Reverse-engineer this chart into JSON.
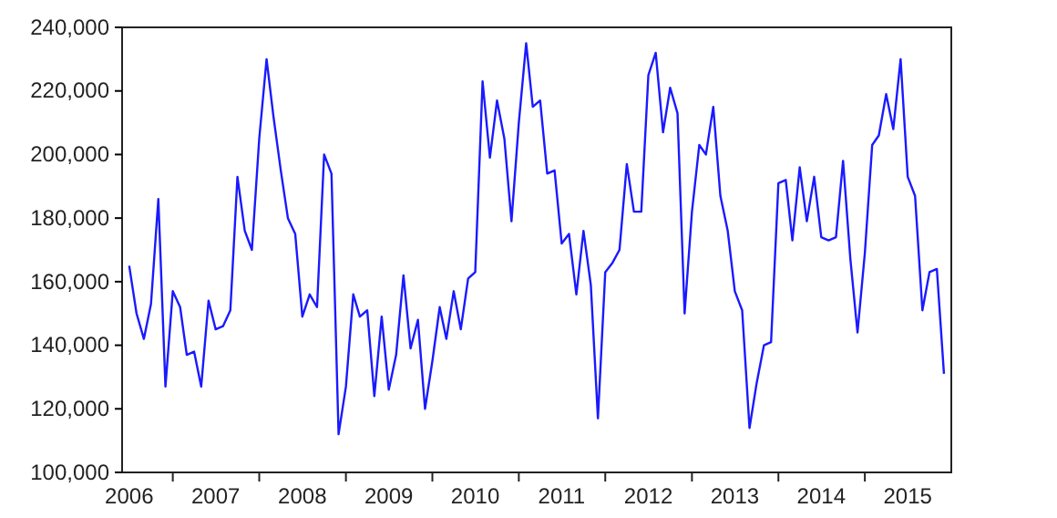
{
  "chart_data": {
    "type": "line",
    "x": [
      "2006-07",
      "2006-08",
      "2006-09",
      "2006-10",
      "2006-11",
      "2006-12",
      "2007-01",
      "2007-02",
      "2007-03",
      "2007-04",
      "2007-05",
      "2007-06",
      "2007-07",
      "2007-08",
      "2007-09",
      "2007-10",
      "2007-11",
      "2007-12",
      "2008-01",
      "2008-02",
      "2008-03",
      "2008-04",
      "2008-05",
      "2008-06",
      "2008-07",
      "2008-08",
      "2008-09",
      "2008-10",
      "2008-11",
      "2008-12",
      "2009-01",
      "2009-02",
      "2009-03",
      "2009-04",
      "2009-05",
      "2009-06",
      "2009-07",
      "2009-08",
      "2009-09",
      "2009-10",
      "2009-11",
      "2009-12",
      "2010-01",
      "2010-02",
      "2010-03",
      "2010-04",
      "2010-05",
      "2010-06",
      "2010-07",
      "2010-08",
      "2010-09",
      "2010-10",
      "2010-11",
      "2010-12",
      "2011-01",
      "2011-02",
      "2011-03",
      "2011-04",
      "2011-05",
      "2011-06",
      "2011-07",
      "2011-08",
      "2011-09",
      "2011-10",
      "2011-11",
      "2011-12",
      "2012-01",
      "2012-02",
      "2012-03",
      "2012-04",
      "2012-05",
      "2012-06",
      "2012-07",
      "2012-08",
      "2012-09",
      "2012-10",
      "2012-11",
      "2012-12",
      "2013-01",
      "2013-02",
      "2013-03",
      "2013-04",
      "2013-05",
      "2013-06",
      "2013-07",
      "2013-08",
      "2013-09",
      "2013-10",
      "2013-11",
      "2013-12",
      "2014-01",
      "2014-02",
      "2014-03",
      "2014-04",
      "2014-05",
      "2014-06",
      "2014-07",
      "2014-08",
      "2014-09",
      "2014-10",
      "2014-11",
      "2014-12",
      "2015-01",
      "2015-02",
      "2015-03",
      "2015-04",
      "2015-05",
      "2015-06",
      "2015-07",
      "2015-08",
      "2015-09",
      "2015-10",
      "2015-11",
      "2015-12"
    ],
    "series": [
      {
        "color": "#1a1aff",
        "values": [
          165000,
          150000,
          142000,
          153000,
          186000,
          127000,
          157000,
          152000,
          137000,
          138000,
          127000,
          154000,
          145000,
          146000,
          151000,
          193000,
          176000,
          170000,
          205000,
          230000,
          212000,
          195000,
          180000,
          175000,
          149000,
          156000,
          152000,
          200000,
          194000,
          112000,
          127000,
          156000,
          149000,
          151000,
          124000,
          149000,
          126000,
          137000,
          162000,
          139000,
          148000,
          120000,
          135000,
          152000,
          142000,
          157000,
          145000,
          161000,
          163000,
          223000,
          199000,
          217000,
          205000,
          179000,
          210000,
          235000,
          215000,
          217000,
          194000,
          195000,
          172000,
          175000,
          156000,
          176000,
          159000,
          117000,
          163000,
          166000,
          170000,
          197000,
          182000,
          182000,
          225000,
          232000,
          207000,
          221000,
          213000,
          150000,
          182000,
          203000,
          200000,
          215000,
          187000,
          176000,
          157000,
          151000,
          114000,
          128000,
          140000,
          141000,
          191000,
          192000,
          173000,
          196000,
          179000,
          193000,
          174000,
          173000,
          174000,
          198000,
          167000,
          144000,
          169000,
          203000,
          206000,
          219000,
          208000,
          230000,
          193000,
          187000,
          151000,
          163000,
          164000,
          131000
        ]
      }
    ],
    "xlim": [
      "2006-06",
      "2016-01"
    ],
    "xticks": [
      {
        "value": "2006-07",
        "label": "2006"
      },
      {
        "value": "2007-01",
        "label": null
      },
      {
        "value": "2007-07",
        "label": "2007"
      },
      {
        "value": "2008-01",
        "label": null
      },
      {
        "value": "2008-07",
        "label": "2008"
      },
      {
        "value": "2009-01",
        "label": null
      },
      {
        "value": "2009-07",
        "label": "2009"
      },
      {
        "value": "2010-01",
        "label": null
      },
      {
        "value": "2010-07",
        "label": "2010"
      },
      {
        "value": "2011-01",
        "label": null
      },
      {
        "value": "2011-07",
        "label": "2011"
      },
      {
        "value": "2012-01",
        "label": null
      },
      {
        "value": "2012-07",
        "label": "2012"
      },
      {
        "value": "2013-01",
        "label": null
      },
      {
        "value": "2013-07",
        "label": "2013"
      },
      {
        "value": "2014-01",
        "label": null
      },
      {
        "value": "2014-07",
        "label": "2014"
      },
      {
        "value": "2015-01",
        "label": null
      },
      {
        "value": "2015-07",
        "label": "2015"
      }
    ],
    "ylim": [
      100000,
      240000
    ],
    "yticks": [
      {
        "value": 100000,
        "label": "100,000"
      },
      {
        "value": 120000,
        "label": "120,000"
      },
      {
        "value": 140000,
        "label": "140,000"
      },
      {
        "value": 160000,
        "label": "160,000"
      },
      {
        "value": 180000,
        "label": "180,000"
      },
      {
        "value": 200000,
        "label": "200,000"
      },
      {
        "value": 220000,
        "label": "220,000"
      },
      {
        "value": 240000,
        "label": "240,000"
      }
    ],
    "grid": false,
    "marker": "none",
    "line_style": "solid"
  }
}
